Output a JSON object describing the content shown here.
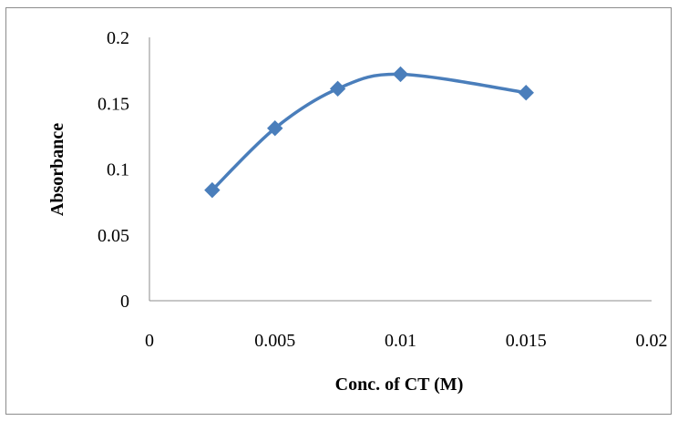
{
  "chart_data": {
    "type": "scatter",
    "title": "",
    "xlabel": "Conc. of CT (M)",
    "ylabel": "Absorbance",
    "xlim": [
      0,
      0.02
    ],
    "ylim": [
      0,
      0.2
    ],
    "x_ticks": [
      "0",
      "0.005",
      "0.01",
      "0.015",
      "0.02"
    ],
    "y_ticks": [
      "0",
      "0.05",
      "0.1",
      "0.15",
      "0.2"
    ],
    "grid": false,
    "legend": "none",
    "line_style": "smoothed",
    "marker": "diamond",
    "series": [
      {
        "color": "#4a7ebb",
        "x": [
          0.0025,
          0.005,
          0.0075,
          0.01,
          0.015
        ],
        "y": [
          0.084,
          0.131,
          0.161,
          0.172,
          0.158
        ]
      }
    ]
  }
}
